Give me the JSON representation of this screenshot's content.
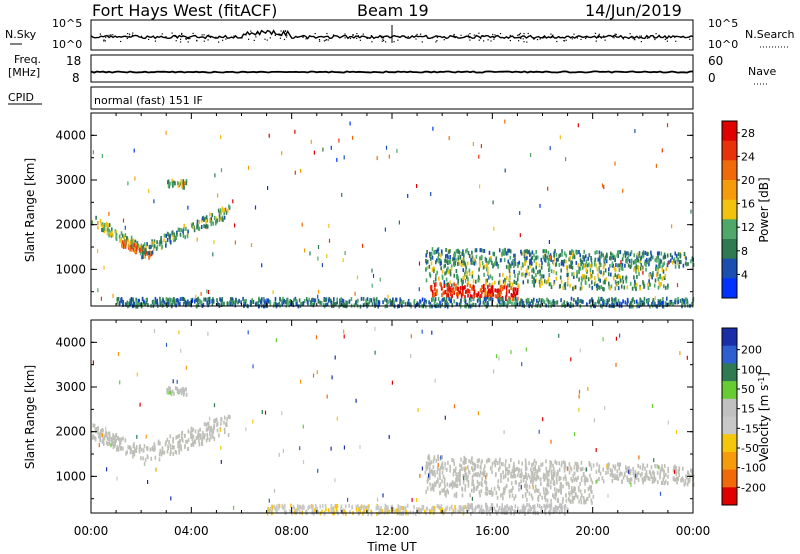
{
  "header": {
    "station": "Fort Hays West (fitACF)",
    "beam": "Beam 19",
    "date": "14/Jun/2019",
    "program": "normal (fast) 151 IF"
  },
  "top_panels": {
    "nsky_label": "N.Sky",
    "nsearch_label": "N.Search",
    "noise_ticks": [
      "10^5",
      "10^0"
    ],
    "freq_label_line1": "Freq.",
    "freq_label_line2": "[MHz]",
    "freq_ticks": [
      "18",
      "8"
    ],
    "nave_label": "Nave",
    "nave_ticks": [
      "60",
      "0"
    ],
    "cpid_label": "CPID"
  },
  "colors": {
    "power_scale": [
      "#0033ff",
      "#1a4fb0",
      "#2f7a52",
      "#4da86a",
      "#f2c20f",
      "#f59b0c",
      "#f06a0a",
      "#e8320a",
      "#e00000"
    ],
    "velocity_scale": [
      "#1a2ea8",
      "#2e5fd0",
      "#2f7a52",
      "#66cc33",
      "#c0c0c0",
      "#c8c8c8",
      "#f5c60c",
      "#f59b0c",
      "#f06a0a",
      "#e00000"
    ],
    "ground_scatter": "#bfbfb8"
  },
  "chart_data": [
    {
      "type": "heatmap",
      "name": "power",
      "xlabel": "Time UT",
      "ylabel": "Slant Range [km]",
      "xlim_hours": [
        0,
        24
      ],
      "ylim_km": [
        180,
        4500
      ],
      "x_ticks": [
        "00:00",
        "04:00",
        "08:00",
        "12:00",
        "16:00",
        "20:00",
        "00:00"
      ],
      "y_ticks": [
        1000,
        2000,
        3000,
        4000
      ],
      "colorbar_label": "Power [dB]",
      "colorbar_ticks": [
        "4",
        "8",
        "12",
        "16",
        "20",
        "24",
        "28"
      ],
      "colorbar_range": [
        0,
        30
      ],
      "features": [
        {
          "t0": 0.0,
          "t1": 2.0,
          "r0": 2150,
          "r1": 1500,
          "width": 120,
          "value": 12,
          "density": 0.5
        },
        {
          "t0": 1.2,
          "t1": 2.4,
          "r0": 1650,
          "r1": 1350,
          "width": 90,
          "value": 22,
          "density": 0.5
        },
        {
          "t0": 2.0,
          "t1": 5.5,
          "r0": 1450,
          "r1": 2350,
          "width": 140,
          "value": 10,
          "density": 0.45
        },
        {
          "t0": 3.0,
          "t1": 3.8,
          "r0": 2950,
          "r1": 2950,
          "width": 80,
          "value": 12,
          "density": 0.4
        },
        {
          "t0": 13.3,
          "t1": 24.0,
          "r0": 1350,
          "r1": 1250,
          "width": 160,
          "value": 9,
          "density": 0.45
        },
        {
          "t0": 13.3,
          "t1": 23.0,
          "r0": 950,
          "r1": 850,
          "width": 280,
          "value": 11,
          "density": 0.5
        },
        {
          "t0": 13.5,
          "t1": 17.0,
          "r0": 600,
          "r1": 500,
          "width": 140,
          "value": 26,
          "density": 0.6
        },
        {
          "t0": 1.0,
          "t1": 24.0,
          "r0": 300,
          "r1": 300,
          "width": 90,
          "value": 8,
          "density": 0.4
        }
      ]
    },
    {
      "type": "heatmap",
      "name": "velocity",
      "xlabel": "Time UT",
      "ylabel": "Slant Range [km]",
      "xlim_hours": [
        0,
        24
      ],
      "ylim_km": [
        180,
        4500
      ],
      "x_ticks": [
        "00:00",
        "04:00",
        "08:00",
        "12:00",
        "16:00",
        "20:00",
        "00:00"
      ],
      "y_ticks": [
        1000,
        2000,
        3000,
        4000
      ],
      "colorbar_label": "Velocity [m s^-1]",
      "colorbar_ticks": [
        "200",
        "100",
        "50",
        "15",
        "-15",
        "-50",
        "-100",
        "-200"
      ],
      "colorbar_range": [
        -250,
        250
      ],
      "features": [
        {
          "t0": 0.0,
          "t1": 2.0,
          "r0": 2050,
          "r1": 1550,
          "width": 160,
          "value": 0,
          "density": 0.6
        },
        {
          "t0": 2.0,
          "t1": 5.5,
          "r0": 1500,
          "r1": 2200,
          "width": 220,
          "value": 0,
          "density": 0.55
        },
        {
          "t0": 13.3,
          "t1": 24.0,
          "r0": 1300,
          "r1": 1050,
          "width": 200,
          "value": 0,
          "density": 0.5
        },
        {
          "t0": 13.3,
          "t1": 20.0,
          "r0": 900,
          "r1": 700,
          "width": 260,
          "value": 0,
          "density": 0.55
        },
        {
          "t0": 7.0,
          "t1": 15.0,
          "r0": 280,
          "r1": 280,
          "width": 110,
          "value": -40,
          "density": 0.45
        },
        {
          "t0": 15.0,
          "t1": 19.0,
          "r0": 300,
          "r1": 300,
          "width": 110,
          "value": 30,
          "density": 0.45
        },
        {
          "t0": 3.0,
          "t1": 3.8,
          "r0": 2950,
          "r1": 2950,
          "width": 80,
          "value": 35,
          "density": 0.4
        }
      ]
    }
  ]
}
